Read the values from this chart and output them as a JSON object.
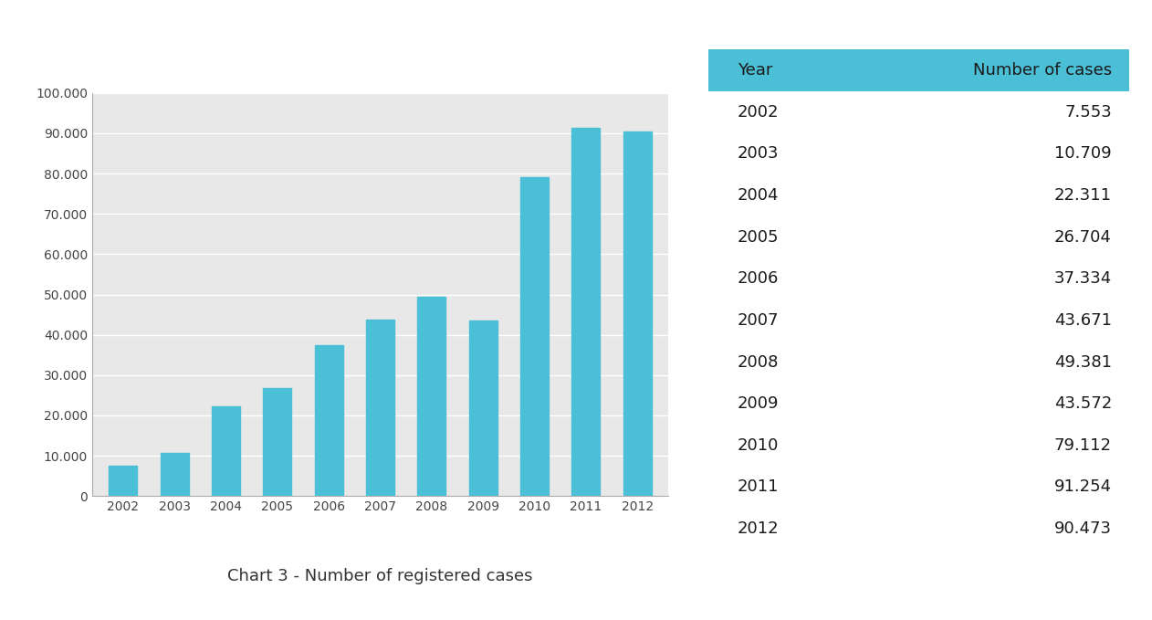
{
  "years": [
    2002,
    2003,
    2004,
    2005,
    2006,
    2007,
    2008,
    2009,
    2010,
    2011,
    2012
  ],
  "values": [
    7553,
    10709,
    22311,
    26704,
    37334,
    43671,
    49381,
    43572,
    79112,
    91254,
    90473
  ],
  "values_display": [
    "7.553",
    "10.709",
    "22.311",
    "26.704",
    "37.334",
    "43.671",
    "49.381",
    "43.572",
    "79.112",
    "91.254",
    "90.473"
  ],
  "bar_color": "#4BBFD6",
  "background_color": "#ffffff",
  "chart_bg_color": "#e8e8e8",
  "grid_color": "#ffffff",
  "ytick_labels": [
    "0",
    "10.000",
    "20.000",
    "30.000",
    "40.000",
    "50.000",
    "60.000",
    "70.000",
    "80.000",
    "90.000",
    "100.000"
  ],
  "ytick_values": [
    0,
    10000,
    20000,
    30000,
    40000,
    50000,
    60000,
    70000,
    80000,
    90000,
    100000
  ],
  "ylim": [
    0,
    100000
  ],
  "caption": "Chart 3 - Number of registered cases",
  "caption_fontsize": 13,
  "table_header": [
    "Year",
    "Number of cases"
  ],
  "table_header_bg": "#4BBFD6",
  "table_header_color": "#1a1a1a",
  "table_text_color": "#1a1a1a",
  "table_fontsize": 13,
  "tick_fontsize": 10,
  "tick_color": "#444444",
  "spine_color": "#aaaaaa"
}
